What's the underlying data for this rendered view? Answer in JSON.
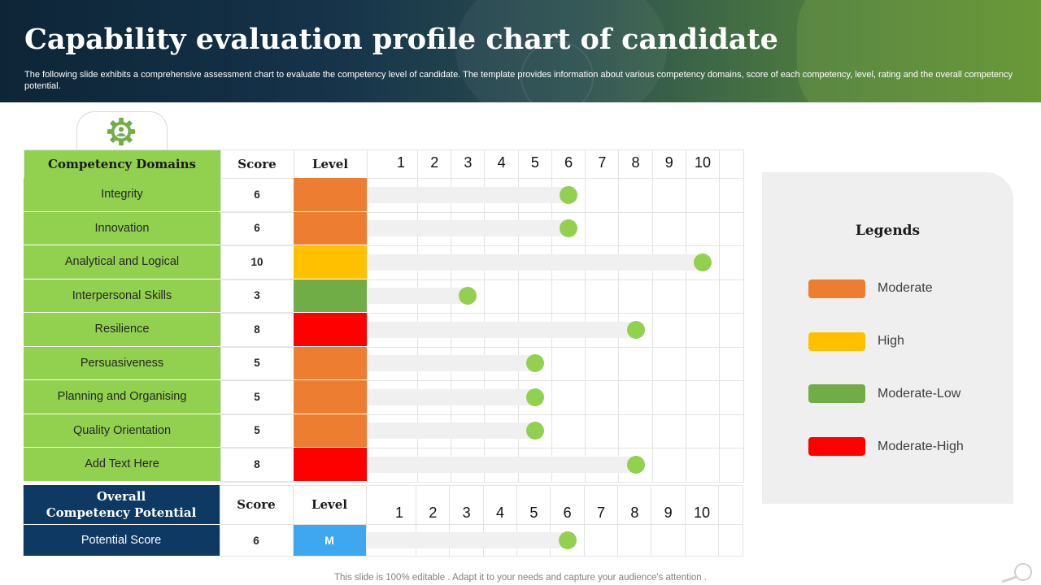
{
  "header": {
    "title": "Capability evaluation profile chart of candidate",
    "subtitle": "The following slide exhibits a comprehensive assessment chart to evaluate the competency level of candidate. The template provides information about various competency domains, score of each competency, level, rating and the overall competency potential."
  },
  "icons": {
    "tab_icon": "gear-person-icon",
    "corner_icon": "magnifier-icon"
  },
  "table": {
    "col_headers": {
      "domains": "Competency Domains",
      "score": "Score",
      "level": "Level"
    }
  },
  "overall": {
    "col_headers": {
      "domains": "Overall\nCompetency Potential",
      "score": "Score",
      "level": "Level"
    },
    "row": {
      "label": "Potential Score",
      "score": "6",
      "level": "M",
      "level_color": "#3ea7f0"
    }
  },
  "legend": {
    "title": "Legends",
    "items": [
      {
        "label": "Moderate",
        "color": "#ed7d31"
      },
      {
        "label": "High",
        "color": "#ffc000"
      },
      {
        "label": "Moderate-Low",
        "color": "#70ad47"
      },
      {
        "label": "Moderate-High",
        "color": "#ff0000"
      }
    ]
  },
  "footer": "This slide is 100% editable . Adapt it to your needs and capture your audience's attention .",
  "colors": {
    "domain_bg": "#92d050",
    "dot": "#92d050",
    "overall_bg": "#0e3962"
  },
  "chart_data": {
    "type": "table",
    "x_ticks": [
      "1",
      "2",
      "3",
      "4",
      "5",
      "6",
      "7",
      "8",
      "9",
      "10"
    ],
    "xlim": [
      1,
      10
    ],
    "rows": [
      {
        "domain": "Integrity",
        "score": 6,
        "level": "Moderate",
        "level_color": "#ed7d31"
      },
      {
        "domain": "Innovation",
        "score": 6,
        "level": "Moderate",
        "level_color": "#ed7d31"
      },
      {
        "domain": "Analytical  and Logical",
        "score": 10,
        "level": "High",
        "level_color": "#ffc000"
      },
      {
        "domain": "Interpersonal Skills",
        "score": 3,
        "level": "Moderate-Low",
        "level_color": "#70ad47"
      },
      {
        "domain": "Resilience",
        "score": 8,
        "level": "Moderate-High",
        "level_color": "#ff0000"
      },
      {
        "domain": "Persuasiveness",
        "score": 5,
        "level": "Moderate",
        "level_color": "#ed7d31"
      },
      {
        "domain": "Planning and Organising",
        "score": 5,
        "level": "Moderate",
        "level_color": "#ed7d31"
      },
      {
        "domain": "Quality Orientation",
        "score": 5,
        "level": "Moderate",
        "level_color": "#ed7d31"
      },
      {
        "domain": "Add Text Here",
        "score": 8,
        "level": "Moderate-High",
        "level_color": "#ff0000"
      }
    ],
    "overall_score": 6
  }
}
